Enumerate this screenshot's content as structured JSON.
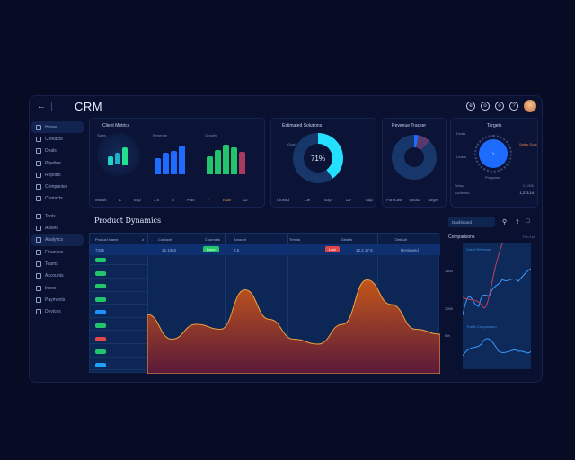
{
  "header": {
    "back_icon": "back-arrow-icon",
    "title": "CRM",
    "icons": [
      "notifications-icon",
      "settings-icon",
      "messages-icon",
      "help-icon"
    ],
    "avatar": "user-avatar"
  },
  "sidebar": {
    "items": [
      {
        "label": "Home",
        "icon": "home-icon",
        "active": false,
        "highlight": true
      },
      {
        "label": "Contacts",
        "icon": "contacts-icon"
      },
      {
        "label": "Deals",
        "icon": "deals-icon"
      },
      {
        "label": "Pipeline",
        "icon": "pipeline-icon"
      },
      {
        "label": "Reports",
        "icon": "reports-icon"
      },
      {
        "label": "Companies",
        "icon": "companies-icon"
      },
      {
        "label": "Contacts",
        "icon": "contacts2-icon"
      },
      {
        "label": "Tools",
        "icon": "tools-icon"
      },
      {
        "label": "Assets",
        "icon": "assets-icon"
      },
      {
        "label": "Analytics",
        "icon": "analytics-icon",
        "active": true
      },
      {
        "label": "Finances",
        "icon": "finances-icon"
      },
      {
        "label": "Teams",
        "icon": "teams-icon"
      },
      {
        "label": "Accounts",
        "icon": "accounts-icon"
      },
      {
        "label": "Inbox",
        "icon": "inbox-icon"
      },
      {
        "label": "Payments",
        "icon": "payments-icon"
      },
      {
        "label": "Devices",
        "icon": "devices-icon"
      }
    ]
  },
  "cards": {
    "bars": {
      "title": "Client Metrics",
      "sub1": "Sales",
      "sub2": "Revenue",
      "sub3": "Growth",
      "footer": [
        "Month",
        "1",
        "Exp",
        "7.5",
        "3",
        "Plan",
        "7",
        "Total",
        "12"
      ]
    },
    "donut1": {
      "title": "Estimated Solutions",
      "value": "71%",
      "label": "Goal",
      "footer": [
        "Closed",
        "1.w",
        "Exp",
        "1.v",
        "Adp"
      ]
    },
    "donut2": {
      "title": "Revenue Tracker",
      "footer": [
        "Forecast",
        "Quota",
        "Target"
      ]
    },
    "gauge": {
      "title": "Targets",
      "left1": "Deals",
      "left2": "Leads",
      "right": "Sales Goal",
      "bottom": "Progress",
      "row1_label": "Setup",
      "row1_value": "17,000",
      "row2_label": "Achieved",
      "row2_value": "1,213.14"
    }
  },
  "table": {
    "title": "Product Dynamics",
    "headers": [
      "Product Name",
      "≥",
      "Contacts",
      "Channels",
      "Amount",
      "Trends",
      "Details",
      "Default"
    ],
    "first_row": {
      "id": "7325",
      "col2": "12,1052",
      "badge_green": "Done",
      "col4": "2.5",
      "badge_red": "Lost",
      "col6": "12,2,17.5",
      "col7": "Reviewed"
    },
    "rows": [
      "7.3.5",
      "7.3.0",
      "7.0.2",
      "7.0.3",
      "7.1.3",
      "7.3.5",
      "7.8.8",
      "7.0.8",
      "7.3.0"
    ],
    "badge_colors": [
      "#22c56b",
      "#22c56b",
      "#22c56b",
      "#22c56b",
      "#1e90ff",
      "#22c56b",
      "#e0464a",
      "#22c56b",
      "#1ea0ff"
    ]
  },
  "right_panel": {
    "search_value": "Dashboard",
    "icons": [
      "search-icon",
      "export-icon",
      "delete-icon"
    ],
    "title": "Comparisons",
    "range": "Feb 1st",
    "chart1_label": "Client Revenue",
    "y_labels": [
      "1500",
      "1000",
      "0%"
    ],
    "chart2_label": "Traffic Comparison"
  },
  "chart_data": {
    "type": "area",
    "title": "Product Dynamics",
    "x": [
      0,
      1,
      2,
      3,
      4,
      5,
      6,
      7,
      8,
      9,
      10,
      11,
      12
    ],
    "values": [
      60,
      35,
      50,
      45,
      85,
      55,
      35,
      30,
      50,
      95,
      70,
      45,
      40
    ]
  },
  "colors": {
    "accent": "#1e6bff",
    "cyan": "#23e0ff",
    "orange": "#e07a1f",
    "green": "#22c56b",
    "red": "#e0464a"
  }
}
